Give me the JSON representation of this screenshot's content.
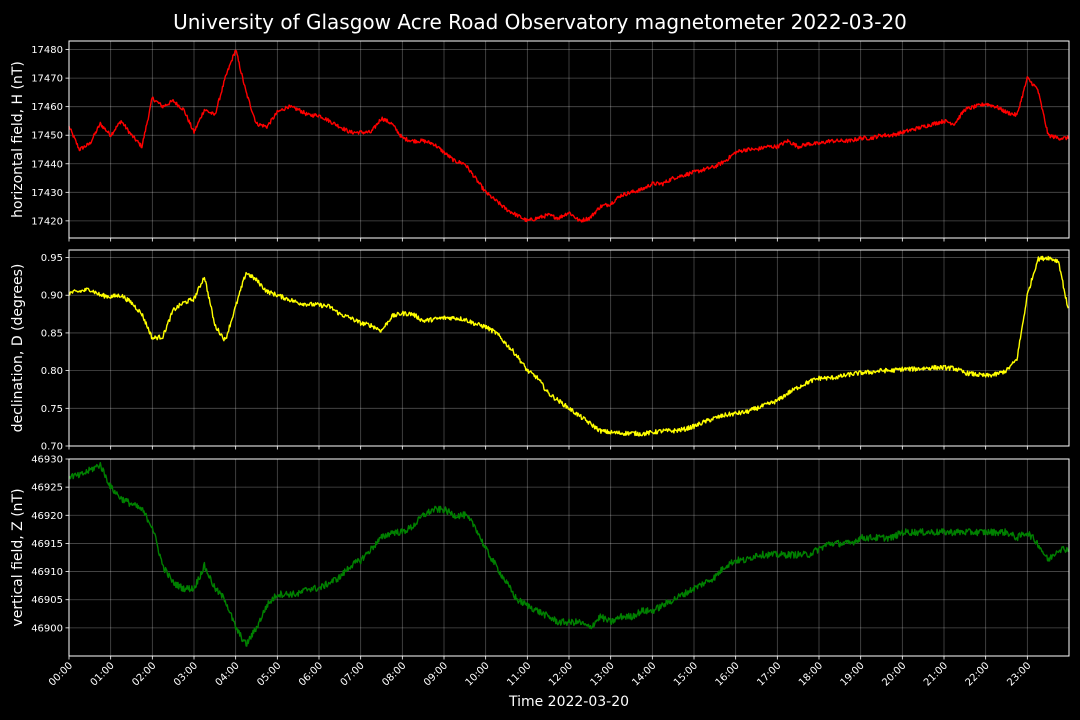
{
  "chart_data": {
    "type": "line",
    "title": "University of Glasgow Acre Road Observatory magnetometer 2022-03-20",
    "xlabel": "Time 2022-03-20",
    "x_ticks": [
      "00:00",
      "01:00",
      "02:00",
      "03:00",
      "04:00",
      "05:00",
      "06:00",
      "07:00",
      "08:00",
      "09:00",
      "10:00",
      "11:00",
      "12:00",
      "13:00",
      "14:00",
      "15:00",
      "16:00",
      "17:00",
      "18:00",
      "19:00",
      "20:00",
      "21:00",
      "22:00",
      "23:00"
    ],
    "xlim": [
      "00:00",
      "23:59"
    ],
    "grid": true,
    "panels": [
      {
        "ylabel": "horizontal field, H (nT)",
        "color": "#ff0000",
        "ylim": [
          17414,
          17483
        ],
        "yticks": [
          17420,
          17430,
          17440,
          17450,
          17460,
          17470,
          17480
        ],
        "noise": 0.7,
        "x": [
          "00:00",
          "00:15",
          "00:30",
          "00:45",
          "01:00",
          "01:15",
          "01:30",
          "01:45",
          "02:00",
          "02:15",
          "02:30",
          "02:45",
          "03:00",
          "03:15",
          "03:30",
          "03:45",
          "04:00",
          "04:15",
          "04:30",
          "04:45",
          "05:00",
          "05:15",
          "05:30",
          "05:45",
          "06:00",
          "06:15",
          "06:30",
          "06:45",
          "07:00",
          "07:15",
          "07:30",
          "07:45",
          "08:00",
          "08:15",
          "08:30",
          "08:45",
          "09:00",
          "09:15",
          "09:30",
          "09:45",
          "10:00",
          "10:15",
          "10:30",
          "10:45",
          "11:00",
          "11:15",
          "11:30",
          "11:45",
          "12:00",
          "12:15",
          "12:30",
          "12:45",
          "13:00",
          "13:15",
          "13:30",
          "13:45",
          "14:00",
          "14:15",
          "14:30",
          "14:45",
          "15:00",
          "15:15",
          "15:30",
          "15:45",
          "16:00",
          "16:15",
          "16:30",
          "16:45",
          "17:00",
          "17:15",
          "17:30",
          "17:45",
          "18:00",
          "18:15",
          "18:30",
          "18:45",
          "19:00",
          "19:15",
          "19:30",
          "19:45",
          "20:00",
          "20:15",
          "20:30",
          "20:45",
          "21:00",
          "21:15",
          "21:30",
          "21:45",
          "22:00",
          "22:15",
          "22:30",
          "22:45",
          "23:00",
          "23:15",
          "23:30",
          "23:45",
          "23:59"
        ],
        "values": [
          17453,
          17445,
          17447,
          17454,
          17450,
          17455,
          17450,
          17446,
          17463,
          17460,
          17462,
          17459,
          17451,
          17459,
          17457,
          17470,
          17480,
          17465,
          17454,
          17453,
          17458,
          17460,
          17459,
          17457,
          17457,
          17455,
          17453,
          17451,
          17451,
          17451,
          17456,
          17454,
          17449,
          17448,
          17448,
          17447,
          17444,
          17441,
          17440,
          17435,
          17430,
          17427,
          17424,
          17422,
          17420,
          17421,
          17422,
          17421,
          17423,
          17420,
          17421,
          17425,
          17426,
          17429,
          17430,
          17431,
          17433,
          17433,
          17435,
          17436,
          17437,
          17438,
          17439,
          17441,
          17444,
          17445,
          17445,
          17446,
          17446,
          17448,
          17446,
          17447,
          17447,
          17448,
          17448,
          17448,
          17449,
          17449,
          17450,
          17450,
          17451,
          17452,
          17453,
          17454,
          17455,
          17454,
          17459,
          17460,
          17461,
          17460,
          17458,
          17457,
          17470,
          17466,
          17450,
          17449,
          17449
        ]
      },
      {
        "ylabel": "declination, D (degrees)",
        "color": "#ffff00",
        "ylim": [
          0.7,
          0.96
        ],
        "yticks": [
          0.7,
          0.75,
          0.8,
          0.85,
          0.9,
          0.95
        ],
        "noise": 0.003,
        "x": [
          "00:00",
          "00:15",
          "00:30",
          "00:45",
          "01:00",
          "01:15",
          "01:30",
          "01:45",
          "02:00",
          "02:15",
          "02:30",
          "02:45",
          "03:00",
          "03:15",
          "03:30",
          "03:45",
          "04:00",
          "04:15",
          "04:30",
          "04:45",
          "05:00",
          "05:15",
          "05:30",
          "05:45",
          "06:00",
          "06:15",
          "06:30",
          "06:45",
          "07:00",
          "07:15",
          "07:30",
          "07:45",
          "08:00",
          "08:15",
          "08:30",
          "08:45",
          "09:00",
          "09:15",
          "09:30",
          "09:45",
          "10:00",
          "10:15",
          "10:30",
          "10:45",
          "11:00",
          "11:15",
          "11:30",
          "11:45",
          "12:00",
          "12:15",
          "12:30",
          "12:45",
          "13:00",
          "13:15",
          "13:30",
          "13:45",
          "14:00",
          "14:15",
          "14:30",
          "14:45",
          "15:00",
          "15:15",
          "15:30",
          "15:45",
          "16:00",
          "16:15",
          "16:30",
          "16:45",
          "17:00",
          "17:15",
          "17:30",
          "17:45",
          "18:00",
          "18:15",
          "18:30",
          "18:45",
          "19:00",
          "19:15",
          "19:30",
          "19:45",
          "20:00",
          "20:15",
          "20:30",
          "20:45",
          "21:00",
          "21:15",
          "21:30",
          "21:45",
          "22:00",
          "22:15",
          "22:30",
          "22:45",
          "23:00",
          "23:15",
          "23:30",
          "23:45",
          "23:59"
        ],
        "values": [
          0.903,
          0.905,
          0.908,
          0.9,
          0.898,
          0.9,
          0.89,
          0.875,
          0.843,
          0.845,
          0.88,
          0.89,
          0.895,
          0.925,
          0.86,
          0.84,
          0.885,
          0.93,
          0.92,
          0.905,
          0.9,
          0.895,
          0.89,
          0.888,
          0.887,
          0.885,
          0.875,
          0.87,
          0.863,
          0.86,
          0.853,
          0.872,
          0.876,
          0.875,
          0.866,
          0.868,
          0.87,
          0.87,
          0.868,
          0.862,
          0.858,
          0.85,
          0.835,
          0.82,
          0.8,
          0.79,
          0.77,
          0.76,
          0.75,
          0.74,
          0.73,
          0.72,
          0.718,
          0.717,
          0.717,
          0.716,
          0.718,
          0.72,
          0.72,
          0.722,
          0.726,
          0.732,
          0.737,
          0.741,
          0.743,
          0.745,
          0.75,
          0.755,
          0.76,
          0.77,
          0.778,
          0.785,
          0.79,
          0.79,
          0.792,
          0.795,
          0.797,
          0.798,
          0.8,
          0.8,
          0.802,
          0.802,
          0.803,
          0.804,
          0.804,
          0.803,
          0.797,
          0.795,
          0.793,
          0.795,
          0.8,
          0.815,
          0.9,
          0.948,
          0.95,
          0.945,
          0.88
        ]
      },
      {
        "ylabel": "vertical field, Z (nT)",
        "color": "#008000",
        "ylim": [
          46895,
          46930
        ],
        "yticks": [
          46900,
          46905,
          46910,
          46915,
          46920,
          46925,
          46930
        ],
        "noise": 0.6,
        "x": [
          "00:00",
          "00:15",
          "00:30",
          "00:45",
          "01:00",
          "01:15",
          "01:30",
          "01:45",
          "02:00",
          "02:15",
          "02:30",
          "02:45",
          "03:00",
          "03:15",
          "03:30",
          "03:45",
          "04:00",
          "04:15",
          "04:30",
          "04:45",
          "05:00",
          "05:15",
          "05:30",
          "05:45",
          "06:00",
          "06:15",
          "06:30",
          "06:45",
          "07:00",
          "07:15",
          "07:30",
          "07:45",
          "08:00",
          "08:15",
          "08:30",
          "08:45",
          "09:00",
          "09:15",
          "09:30",
          "09:45",
          "10:00",
          "10:15",
          "10:30",
          "10:45",
          "11:00",
          "11:15",
          "11:30",
          "11:45",
          "12:00",
          "12:15",
          "12:30",
          "12:45",
          "13:00",
          "13:15",
          "13:30",
          "13:45",
          "14:00",
          "14:15",
          "14:30",
          "14:45",
          "15:00",
          "15:15",
          "15:30",
          "15:45",
          "16:00",
          "16:15",
          "16:30",
          "16:45",
          "17:00",
          "17:15",
          "17:30",
          "17:45",
          "18:00",
          "18:15",
          "18:30",
          "18:45",
          "19:00",
          "19:15",
          "19:30",
          "19:45",
          "20:00",
          "20:15",
          "20:30",
          "20:45",
          "21:00",
          "21:15",
          "21:30",
          "21:45",
          "22:00",
          "22:15",
          "22:30",
          "22:45",
          "23:00",
          "23:15",
          "23:30",
          "23:45",
          "23:59"
        ],
        "values": [
          46927,
          46927,
          46928,
          46929,
          46925,
          46923,
          46922,
          46921,
          46918,
          46911,
          46908,
          46907,
          46907,
          46911,
          46907,
          46905,
          46900,
          46897,
          46900,
          46904,
          46906,
          46906,
          46906,
          46907,
          46907,
          46908,
          46909,
          46911,
          46912,
          46914,
          46916,
          46917,
          46917,
          46918,
          46920,
          46921,
          46921,
          46920,
          46920,
          46918,
          46914,
          46911,
          46908,
          46905,
          46904,
          46903,
          46902,
          46901,
          46901,
          46901,
          46900,
          46902,
          46901,
          46902,
          46902,
          46903,
          46903,
          46904,
          46905,
          46906,
          46907,
          46908,
          46909,
          46911,
          46912,
          46912,
          46913,
          46913,
          46913,
          46913,
          46913,
          46913,
          46914,
          46915,
          46915,
          46915,
          46916,
          46916,
          46916,
          46916,
          46917,
          46917,
          46917,
          46917,
          46917,
          46917,
          46917,
          46917,
          46917,
          46917,
          46917,
          46916,
          46917,
          46915,
          46912,
          46914,
          46914
        ]
      }
    ]
  }
}
